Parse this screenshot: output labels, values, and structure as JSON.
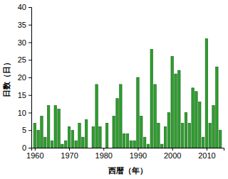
{
  "chart_data": {
    "type": "bar",
    "x_label": "西暦（年）",
    "y_label": "日数（日）",
    "x": [
      1960,
      1961,
      1962,
      1963,
      1964,
      1965,
      1966,
      1967,
      1968,
      1969,
      1970,
      1971,
      1972,
      1973,
      1974,
      1975,
      1976,
      1977,
      1978,
      1979,
      1980,
      1981,
      1982,
      1983,
      1984,
      1985,
      1986,
      1987,
      1988,
      1989,
      1990,
      1991,
      1992,
      1993,
      1994,
      1995,
      1996,
      1997,
      1998,
      1999,
      2000,
      2001,
      2002,
      2003,
      2004,
      2005,
      2006,
      2007,
      2008,
      2009,
      2010,
      2011,
      2012,
      2013,
      2014
    ],
    "values": [
      7,
      5,
      9,
      3,
      12,
      2,
      12,
      11,
      1,
      2,
      6,
      5,
      2,
      7,
      3,
      8,
      0,
      6,
      18,
      6,
      0,
      7,
      0,
      9,
      14,
      18,
      4,
      4,
      2,
      2,
      20,
      9,
      3,
      1,
      28,
      18,
      7,
      1,
      6,
      10,
      26,
      21,
      22,
      7,
      10,
      7,
      17,
      16,
      13,
      3,
      31,
      7,
      12,
      23,
      5
    ],
    "color": "#2ca02c",
    "xlim": [
      1959,
      2015
    ],
    "xticks": [
      1960,
      1970,
      1980,
      1990,
      2000,
      2010
    ],
    "ylim": [
      0,
      40
    ],
    "yticks": [
      0,
      5,
      10,
      15,
      20,
      25,
      30,
      35,
      40
    ],
    "grid": false
  }
}
